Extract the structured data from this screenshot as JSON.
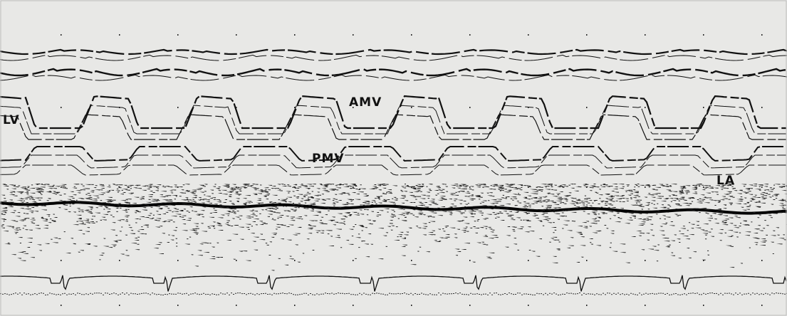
{
  "labels": {
    "lv": "LV",
    "amv": "AMV",
    "pmv": "PMV",
    "la": "LA"
  }
}
